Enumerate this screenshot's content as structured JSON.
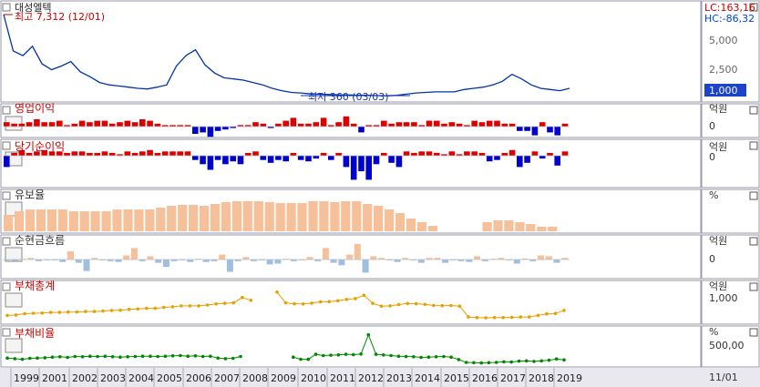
{
  "stock": {
    "name": "대성엘텍",
    "lc_label": "LC:163,16",
    "hc_label": "HC:-86,32",
    "high_note": "최고 7,312 (12/01)",
    "low_note": "최저 360 (03/03)",
    "current_value": "1,000",
    "axis_ticks": [
      "5,000",
      "2,500",
      "1,000"
    ]
  },
  "panels": [
    {
      "id": "op",
      "title": "영업이익",
      "unit": "억원",
      "zero": "0",
      "color": "#dd0000"
    },
    {
      "id": "net",
      "title": "당기순이익",
      "unit": "억원",
      "zero": "0",
      "color": "#dd0000"
    },
    {
      "id": "ret",
      "title": "유보율",
      "unit": "%",
      "color": "#f5c09a"
    },
    {
      "id": "cf",
      "title": "순현금흐름",
      "unit": "억원",
      "zero": "0",
      "color": "#f5c09a"
    },
    {
      "id": "debt",
      "title": "부채총계",
      "unit": "억원",
      "tick": "1,000",
      "color": "#e8a000"
    },
    {
      "id": "dr",
      "title": "부채비율",
      "unit": "%",
      "tick": "500,00",
      "color": "#008800"
    }
  ],
  "x_axis": {
    "years": [
      "1999",
      "2001",
      "2002",
      "2003",
      "2004",
      "2005",
      "2006",
      "2007",
      "2008",
      "2009",
      "2010",
      "2011",
      "2012",
      "2013",
      "2014",
      "2015",
      "2016",
      "2017",
      "2018",
      "2019"
    ],
    "right_label": "11/01"
  },
  "chart_data": [
    {
      "type": "line",
      "title": "대성엘텍",
      "series": [
        {
          "values": [
            7312,
            4200,
            3800,
            4600,
            3100,
            2600,
            2900,
            3300,
            2400,
            2000,
            1500,
            1300,
            1200,
            1100,
            1000,
            950,
            1100,
            1300,
            2900,
            3800,
            4300,
            3000,
            2300,
            1900,
            1800,
            1700,
            1500,
            1300,
            1000,
            800,
            650,
            600,
            520,
            500,
            470,
            450,
            430,
            420,
            400,
            380,
            360,
            400,
            500,
            600,
            650,
            700,
            700,
            700,
            900,
            1000,
            1100,
            1300,
            1600,
            2200,
            1800,
            1300,
            1000,
            900,
            800,
            1000
          ]
        }
      ]
    },
    {
      "type": "bar",
      "title": "영업이익",
      "series": [
        {
          "values": [
            3,
            2,
            2,
            3,
            5,
            3,
            3,
            4,
            1,
            2,
            4,
            3,
            4,
            4,
            2,
            3,
            4,
            3,
            5,
            4,
            2,
            1,
            1,
            1,
            1,
            -5,
            -4,
            -7,
            -3,
            -2,
            -1,
            1,
            1,
            3,
            2,
            -1,
            2,
            4,
            6,
            2,
            2,
            3,
            6,
            1,
            3,
            7,
            2,
            -4,
            1,
            1,
            4,
            2,
            3,
            3,
            3,
            1,
            4,
            4,
            2,
            3,
            2,
            1,
            4,
            3,
            4,
            4,
            2,
            2,
            -3,
            -3,
            -6,
            3,
            -4,
            -6,
            2
          ]
        }
      ]
    },
    {
      "type": "bar",
      "title": "당기순이익",
      "series": [
        {
          "values": [
            -8,
            2,
            4,
            2,
            3,
            4,
            3,
            3,
            2,
            3,
            3,
            2,
            2,
            3,
            2,
            1,
            3,
            2,
            3,
            4,
            2,
            3,
            3,
            3,
            3,
            -3,
            -6,
            -10,
            -3,
            -6,
            -4,
            -6,
            2,
            3,
            -3,
            -5,
            -3,
            -4,
            2,
            -3,
            -4,
            -2,
            2,
            -3,
            2,
            -8,
            -17,
            -11,
            -17,
            -6,
            2,
            -5,
            -8,
            3,
            2,
            3,
            3,
            2,
            1,
            3,
            1,
            3,
            3,
            2,
            -4,
            -3,
            2,
            4,
            -8,
            -5,
            3,
            -2,
            2,
            -7,
            3
          ]
        }
      ]
    },
    {
      "type": "bar",
      "title": "유보율",
      "series": [
        {
          "values": [
            18,
            22,
            24,
            24,
            24,
            24,
            22,
            22,
            22,
            22,
            24,
            24,
            24,
            24,
            26,
            28,
            29,
            29,
            28,
            30,
            32,
            33,
            33,
            33,
            32,
            31,
            31,
            31,
            33,
            33,
            32,
            33,
            33,
            30,
            28,
            24,
            20,
            14,
            10,
            6,
            0,
            0,
            0,
            0,
            10,
            12,
            12,
            10,
            8,
            5,
            5,
            0
          ]
        }
      ]
    },
    {
      "type": "bar",
      "title": "순현금흐름",
      "series": [
        {
          "values": [
            -1,
            -2,
            1,
            2,
            -2,
            -1,
            -1,
            -3,
            10,
            -4,
            -14,
            2,
            -1,
            -2,
            -3,
            5,
            14,
            -2,
            4,
            -4,
            -9,
            -2,
            -1,
            -3,
            1,
            -3,
            -2,
            6,
            -15,
            -2,
            3,
            -2,
            -1,
            -6,
            -5,
            1,
            -2,
            -1,
            3,
            -2,
            14,
            -4,
            -7,
            6,
            19,
            -16,
            4,
            2,
            -1,
            -3,
            2,
            -1,
            -4,
            2,
            2,
            -4,
            -1,
            -2,
            -3,
            4,
            -2,
            1,
            2,
            -1,
            -5,
            1,
            -2,
            5,
            4,
            -4,
            2
          ]
        }
      ]
    },
    {
      "type": "line",
      "title": "부채총계",
      "series": [
        {
          "values": [
            320,
            340,
            400,
            420,
            430,
            460,
            460,
            470,
            480,
            500,
            500,
            520,
            550,
            560,
            600,
            620,
            650,
            650,
            690,
            720,
            760,
            760,
            760,
            800,
            850,
            880,
            900,
            1150,
            1020,
            null,
            null,
            1400,
            900,
            860,
            850,
            890,
            950,
            960,
            1000,
            1060,
            1100,
            1250,
            880,
            750,
            760,
            820,
            870,
            860,
            830,
            780,
            770,
            780,
            750,
            250,
            220,
            210,
            220,
            220,
            230,
            250,
            250,
            320,
            390,
            410,
            550
          ]
        }
      ]
    },
    {
      "type": "line",
      "title": "부채비율",
      "series": [
        {
          "values": [
            200,
            180,
            160,
            190,
            200,
            210,
            230,
            240,
            220,
            250,
            240,
            260,
            250,
            260,
            240,
            230,
            240,
            250,
            260,
            260,
            250,
            260,
            270,
            280,
            260,
            270,
            250,
            260,
            200,
            180,
            190,
            250,
            null,
            null,
            null,
            null,
            null,
            null,
            230,
            160,
            160,
            320,
            280,
            290,
            300,
            320,
            310,
            330,
            950,
            320,
            300,
            280,
            260,
            250,
            240,
            220,
            230,
            240,
            250,
            230,
            150,
            60,
            50,
            40,
            50,
            60,
            80,
            70,
            100,
            110,
            90,
            110,
            130,
            170,
            140
          ]
        }
      ]
    }
  ]
}
